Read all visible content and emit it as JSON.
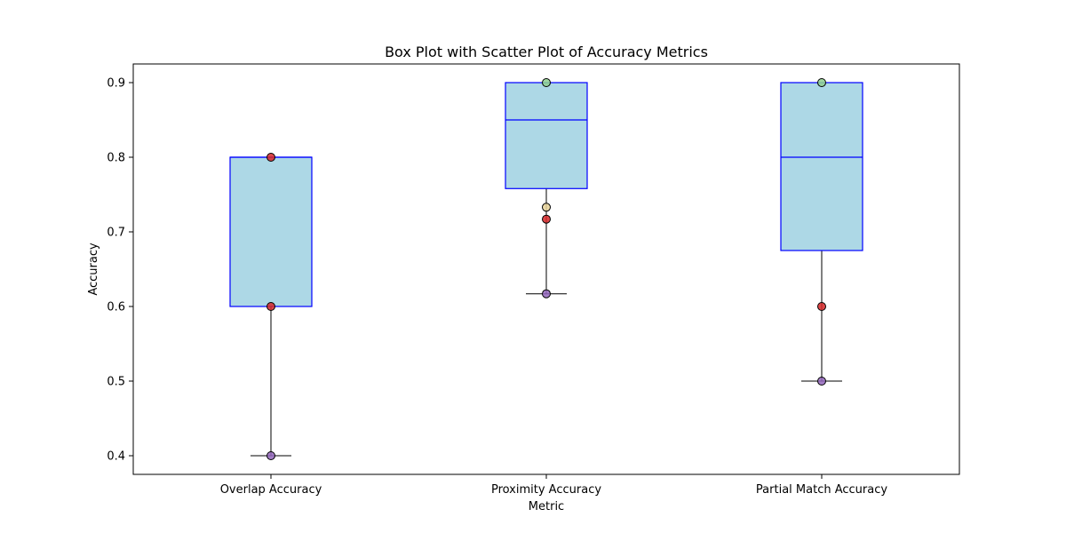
{
  "chart_data": {
    "type": "box",
    "title": "Box Plot with Scatter Plot of Accuracy Metrics",
    "xlabel": "Metric",
    "ylabel": "Accuracy",
    "categories": [
      "Overlap Accuracy",
      "Proximity Accuracy",
      "Partial Match Accuracy"
    ],
    "ylim": [
      0.375,
      0.925
    ],
    "yticks": [
      0.4,
      0.5,
      0.6,
      0.7,
      0.8,
      0.9
    ],
    "ytick_labels": [
      "0.4",
      "0.5",
      "0.6",
      "0.7",
      "0.8",
      "0.9"
    ],
    "grid": false,
    "boxes": [
      {
        "category": "Overlap Accuracy",
        "whisker_low": 0.4,
        "q1": 0.6,
        "median": 0.8,
        "q3": 0.8,
        "whisker_high": 0.8
      },
      {
        "category": "Proximity Accuracy",
        "whisker_low": 0.617,
        "q1": 0.758,
        "median": 0.85,
        "q3": 0.9,
        "whisker_high": 0.9
      },
      {
        "category": "Partial Match Accuracy",
        "whisker_low": 0.5,
        "q1": 0.675,
        "median": 0.8,
        "q3": 0.9,
        "whisker_high": 0.9
      }
    ],
    "points": [
      {
        "category": "Overlap Accuracy",
        "y": 0.8,
        "color": "#d62728"
      },
      {
        "category": "Overlap Accuracy",
        "y": 0.6,
        "color": "#d62728"
      },
      {
        "category": "Overlap Accuracy",
        "y": 0.4,
        "color": "#9467bd"
      },
      {
        "category": "Proximity Accuracy",
        "y": 0.9,
        "color": "#8fd18f"
      },
      {
        "category": "Proximity Accuracy",
        "y": 0.733,
        "color": "#e8d49a"
      },
      {
        "category": "Proximity Accuracy",
        "y": 0.717,
        "color": "#d62728"
      },
      {
        "category": "Proximity Accuracy",
        "y": 0.617,
        "color": "#9467bd"
      },
      {
        "category": "Partial Match Accuracy",
        "y": 0.9,
        "color": "#8fd18f"
      },
      {
        "category": "Partial Match Accuracy",
        "y": 0.6,
        "color": "#d62728"
      },
      {
        "category": "Partial Match Accuracy",
        "y": 0.5,
        "color": "#9467bd"
      }
    ],
    "colors": {
      "box_fill": "#add8e6",
      "box_edge": "#0000ff",
      "median": "#0000ff",
      "whisker": "#000000"
    }
  }
}
